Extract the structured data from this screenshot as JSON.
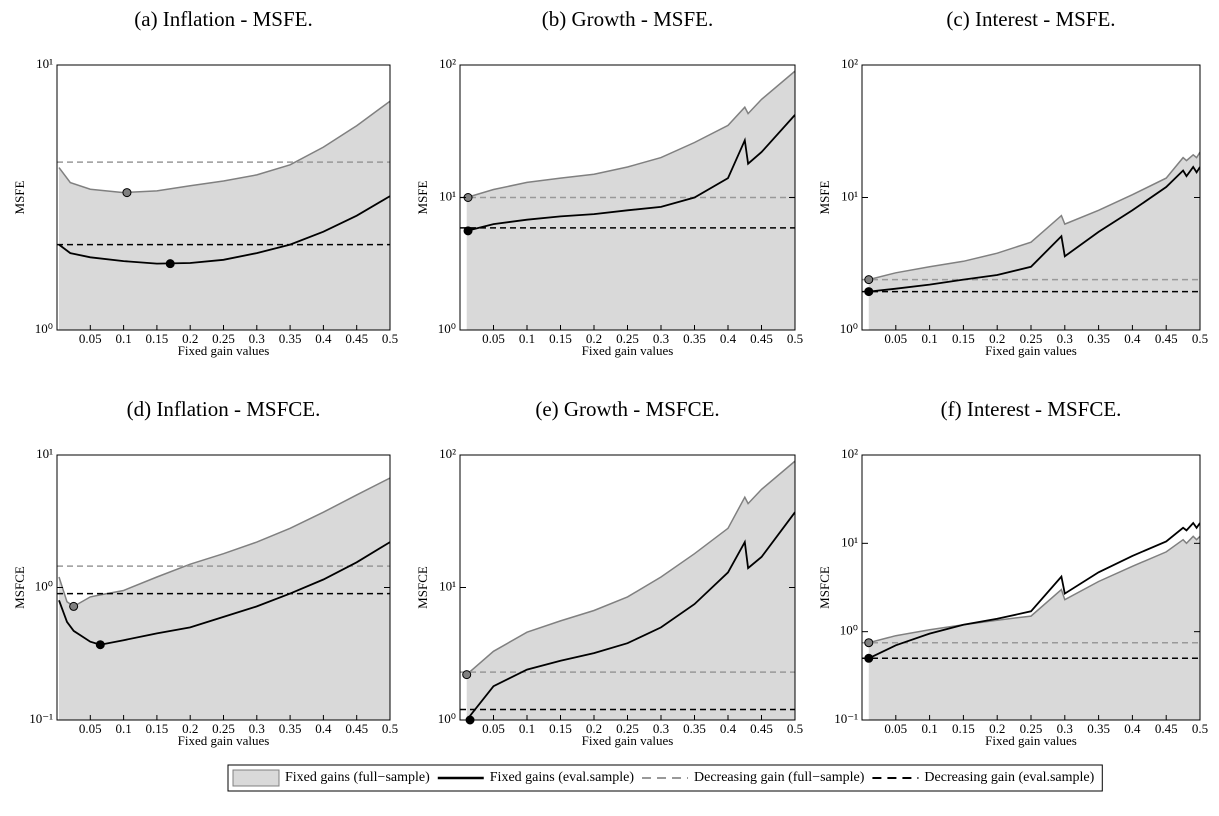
{
  "chart_data": [
    {
      "type": "area",
      "title": "(a) Inflation - MSFE.",
      "xlabel": "Fixed gain values",
      "ylabel": "MSFE",
      "log_y": true,
      "xlim": [
        0,
        0.5
      ],
      "xticks": [
        0.05,
        0.1,
        0.15,
        0.2,
        0.25,
        0.3,
        0.35,
        0.4,
        0.45,
        0.5
      ],
      "ylim": [
        1,
        10
      ],
      "yticks": [
        {
          "value": 1,
          "label": "10⁰"
        },
        {
          "value": 10,
          "label": "10¹"
        }
      ],
      "x": [
        0.003,
        0.02,
        0.05,
        0.1,
        0.15,
        0.2,
        0.25,
        0.3,
        0.35,
        0.4,
        0.45,
        0.5
      ],
      "series": [
        {
          "style": "area",
          "color": "#d9d9d9",
          "stroke": "#808080",
          "values": [
            4.1,
            3.6,
            3.4,
            3.3,
            3.35,
            3.5,
            3.65,
            3.85,
            4.2,
            4.9,
            5.9,
            7.3
          ]
        },
        {
          "style": "line",
          "color": "#000000",
          "values": [
            2.1,
            1.95,
            1.88,
            1.82,
            1.78,
            1.79,
            1.84,
            1.95,
            2.1,
            2.35,
            2.7,
            3.2
          ]
        }
      ],
      "hlines": [
        {
          "value": 4.3,
          "color": "#999999"
        },
        {
          "value": 2.1,
          "color": "#000000"
        }
      ],
      "points": [
        {
          "x": 0.105,
          "y": 3.3,
          "color": "#808080"
        },
        {
          "x": 0.17,
          "y": 1.78,
          "color": "#000000"
        }
      ]
    },
    {
      "type": "area",
      "title": "(b) Growth - MSFE.",
      "xlabel": "Fixed gain values",
      "ylabel": "MSFE",
      "log_y": true,
      "xlim": [
        0,
        0.5
      ],
      "xticks": [
        0.05,
        0.1,
        0.15,
        0.2,
        0.25,
        0.3,
        0.35,
        0.4,
        0.45,
        0.5
      ],
      "ylim": [
        1,
        100
      ],
      "yticks": [
        {
          "value": 1,
          "label": "10⁰"
        },
        {
          "value": 10,
          "label": "10¹"
        },
        {
          "value": 100,
          "label": "10²"
        }
      ],
      "x": [
        0.01,
        0.05,
        0.1,
        0.15,
        0.2,
        0.25,
        0.3,
        0.35,
        0.4,
        0.425,
        0.43,
        0.45,
        0.5
      ],
      "series": [
        {
          "style": "area",
          "color": "#d9d9d9",
          "stroke": "#808080",
          "values": [
            10,
            11.5,
            13,
            14,
            15,
            17,
            20,
            26,
            35,
            48,
            43,
            55,
            90
          ]
        },
        {
          "style": "line",
          "color": "#000000",
          "values": [
            5.6,
            6.3,
            6.8,
            7.2,
            7.5,
            8,
            8.5,
            10,
            14,
            27,
            18,
            22,
            42
          ]
        }
      ],
      "hlines": [
        {
          "value": 10,
          "color": "#999999"
        },
        {
          "value": 5.9,
          "color": "#000000"
        }
      ],
      "points": [
        {
          "x": 0.012,
          "y": 10,
          "color": "#808080"
        },
        {
          "x": 0.012,
          "y": 5.6,
          "color": "#000000"
        }
      ]
    },
    {
      "type": "area",
      "title": "(c) Interest - MSFE.",
      "xlabel": "Fixed gain values",
      "ylabel": "MSFE",
      "log_y": true,
      "xlim": [
        0,
        0.5
      ],
      "xticks": [
        0.05,
        0.1,
        0.15,
        0.2,
        0.25,
        0.3,
        0.35,
        0.4,
        0.45,
        0.5
      ],
      "ylim": [
        1,
        100
      ],
      "yticks": [
        {
          "value": 1,
          "label": "10⁰"
        },
        {
          "value": 10,
          "label": "10¹"
        },
        {
          "value": 100,
          "label": "10²"
        }
      ],
      "x": [
        0.01,
        0.05,
        0.1,
        0.15,
        0.2,
        0.25,
        0.295,
        0.3,
        0.35,
        0.4,
        0.45,
        0.475,
        0.48,
        0.49,
        0.495,
        0.5
      ],
      "series": [
        {
          "style": "area",
          "color": "#d9d9d9",
          "stroke": "#808080",
          "values": [
            2.4,
            2.7,
            3,
            3.3,
            3.8,
            4.6,
            7.3,
            6.3,
            8,
            10.5,
            14,
            20,
            19,
            21,
            20,
            22
          ]
        },
        {
          "style": "line",
          "color": "#000000",
          "values": [
            1.95,
            2.05,
            2.2,
            2.4,
            2.6,
            3.0,
            5.1,
            3.6,
            5.5,
            8,
            12,
            16,
            14.5,
            17,
            15.5,
            17
          ]
        }
      ],
      "hlines": [
        {
          "value": 2.4,
          "color": "#999999"
        },
        {
          "value": 1.95,
          "color": "#000000"
        }
      ],
      "points": [
        {
          "x": 0.01,
          "y": 2.4,
          "color": "#808080"
        },
        {
          "x": 0.01,
          "y": 1.95,
          "color": "#000000"
        }
      ]
    },
    {
      "type": "area",
      "title": "(d) Inflation - MSFCE.",
      "xlabel": "Fixed gain values",
      "ylabel": "MSFCE",
      "log_y": true,
      "xlim": [
        0,
        0.5
      ],
      "xticks": [
        0.05,
        0.1,
        0.15,
        0.2,
        0.25,
        0.3,
        0.35,
        0.4,
        0.45,
        0.5
      ],
      "ylim": [
        0.1,
        10
      ],
      "yticks": [
        {
          "value": 0.1,
          "label": "10⁻¹"
        },
        {
          "value": 1,
          "label": "10⁰"
        },
        {
          "value": 10,
          "label": "10¹"
        }
      ],
      "x": [
        0.003,
        0.015,
        0.025,
        0.05,
        0.065,
        0.1,
        0.15,
        0.2,
        0.25,
        0.3,
        0.35,
        0.4,
        0.45,
        0.5
      ],
      "series": [
        {
          "style": "area",
          "color": "#d9d9d9",
          "stroke": "#808080",
          "values": [
            1.2,
            0.78,
            0.72,
            0.85,
            0.88,
            0.95,
            1.2,
            1.5,
            1.8,
            2.2,
            2.8,
            3.7,
            5.0,
            6.7
          ]
        },
        {
          "style": "line",
          "color": "#000000",
          "values": [
            0.8,
            0.55,
            0.47,
            0.39,
            0.37,
            0.4,
            0.45,
            0.5,
            0.6,
            0.72,
            0.9,
            1.15,
            1.55,
            2.2
          ]
        }
      ],
      "hlines": [
        {
          "value": 1.45,
          "color": "#999999"
        },
        {
          "value": 0.9,
          "color": "#000000"
        }
      ],
      "points": [
        {
          "x": 0.025,
          "y": 0.72,
          "color": "#808080"
        },
        {
          "x": 0.065,
          "y": 0.37,
          "color": "#000000"
        }
      ]
    },
    {
      "type": "area",
      "title": "(e) Growth - MSFCE.",
      "xlabel": "Fixed gain values",
      "ylabel": "MSFCE",
      "log_y": true,
      "xlim": [
        0,
        0.5
      ],
      "xticks": [
        0.05,
        0.1,
        0.15,
        0.2,
        0.25,
        0.3,
        0.35,
        0.4,
        0.45,
        0.5
      ],
      "ylim": [
        1,
        100
      ],
      "yticks": [
        {
          "value": 1,
          "label": "10⁰"
        },
        {
          "value": 10,
          "label": "10¹"
        },
        {
          "value": 100,
          "label": "10²"
        }
      ],
      "x": [
        0.01,
        0.05,
        0.1,
        0.15,
        0.2,
        0.25,
        0.3,
        0.35,
        0.4,
        0.425,
        0.43,
        0.45,
        0.5
      ],
      "series": [
        {
          "style": "area",
          "color": "#d9d9d9",
          "stroke": "#808080",
          "values": [
            2.2,
            3.3,
            4.6,
            5.6,
            6.7,
            8.5,
            12,
            18,
            28,
            48,
            43,
            55,
            90
          ]
        },
        {
          "style": "line",
          "color": "#000000",
          "values": [
            1.0,
            1.8,
            2.4,
            2.8,
            3.2,
            3.8,
            5,
            7.5,
            13,
            22,
            14,
            17,
            37
          ]
        }
      ],
      "hlines": [
        {
          "value": 2.3,
          "color": "#999999"
        },
        {
          "value": 1.2,
          "color": "#000000"
        }
      ],
      "points": [
        {
          "x": 0.01,
          "y": 2.2,
          "color": "#808080"
        },
        {
          "x": 0.015,
          "y": 1.0,
          "color": "#000000"
        }
      ]
    },
    {
      "type": "area",
      "title": "(f) Interest - MSFCE.",
      "xlabel": "Fixed gain values",
      "ylabel": "MSFCE",
      "log_y": true,
      "xlim": [
        0,
        0.5
      ],
      "xticks": [
        0.05,
        0.1,
        0.15,
        0.2,
        0.25,
        0.3,
        0.35,
        0.4,
        0.45,
        0.5
      ],
      "ylim": [
        0.1,
        100
      ],
      "yticks": [
        {
          "value": 0.1,
          "label": "10⁻¹"
        },
        {
          "value": 1,
          "label": "10⁰"
        },
        {
          "value": 10,
          "label": "10¹"
        },
        {
          "value": 100,
          "label": "10²"
        }
      ],
      "x": [
        0.01,
        0.05,
        0.1,
        0.15,
        0.2,
        0.25,
        0.295,
        0.3,
        0.35,
        0.4,
        0.45,
        0.475,
        0.48,
        0.49,
        0.495,
        0.5
      ],
      "series": [
        {
          "style": "area",
          "color": "#d9d9d9",
          "stroke": "#808080",
          "values": [
            0.75,
            0.9,
            1.05,
            1.2,
            1.35,
            1.5,
            3.0,
            2.3,
            3.7,
            5.5,
            8,
            11,
            10,
            12,
            11,
            12
          ]
        },
        {
          "style": "line",
          "color": "#000000",
          "values": [
            0.5,
            0.7,
            0.95,
            1.2,
            1.4,
            1.7,
            4.2,
            2.7,
            4.7,
            7.2,
            10.5,
            15,
            14,
            17,
            15,
            17
          ]
        }
      ],
      "hlines": [
        {
          "value": 0.75,
          "color": "#999999"
        },
        {
          "value": 0.5,
          "color": "#000000"
        }
      ],
      "points": [
        {
          "x": 0.01,
          "y": 0.75,
          "color": "#808080"
        },
        {
          "x": 0.01,
          "y": 0.5,
          "color": "#000000"
        }
      ]
    }
  ],
  "legend": [
    {
      "label": "Fixed gains (full−sample)",
      "style": "area",
      "color": "#d9d9d9",
      "stroke": "#808080"
    },
    {
      "label": "Fixed gains (eval.sample)",
      "style": "line",
      "color": "#000000"
    },
    {
      "label": "Decreasing gain (full−sample)",
      "style": "dashed",
      "color": "#999999"
    },
    {
      "label": "Decreasing gain (eval.sample)",
      "style": "dashed",
      "color": "#000000"
    }
  ]
}
